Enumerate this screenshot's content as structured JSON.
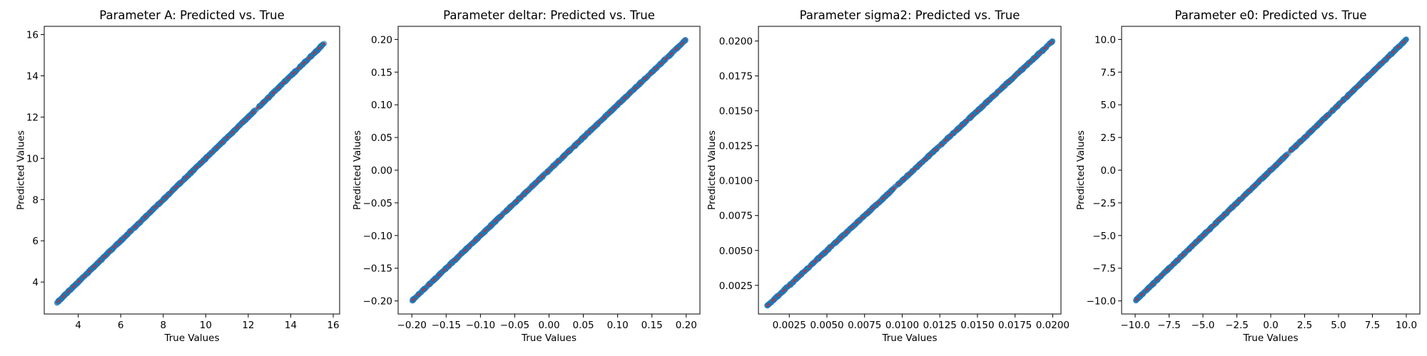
{
  "figure": {
    "background": "#ffffff"
  },
  "style": {
    "point_color": "#1f77b4",
    "point_alpha": 0.55,
    "line_color": "#d62728"
  },
  "chart_data": [
    {
      "type": "scatter",
      "title": "Parameter A: Predicted vs. True",
      "xlabel": "True Values",
      "ylabel": "Predicted Values",
      "xlim": [
        2.4,
        16.3
      ],
      "ylim": [
        2.45,
        16.4
      ],
      "xticks": [
        4,
        6,
        8,
        10,
        12,
        14,
        16
      ],
      "xtick_labels": [
        "4",
        "6",
        "8",
        "10",
        "12",
        "14",
        "16"
      ],
      "yticks": [
        4,
        6,
        8,
        10,
        12,
        14,
        16
      ],
      "ytick_labels": [
        "4",
        "6",
        "8",
        "10",
        "12",
        "14",
        "16"
      ],
      "x_range": [
        3.0,
        15.6
      ],
      "y_range": [
        3.0,
        15.7
      ],
      "reference_line": {
        "x": [
          3.0,
          15.6
        ],
        "y": [
          3.0,
          15.6
        ],
        "style": "dashed"
      }
    },
    {
      "type": "scatter",
      "title": "Parameter deltar: Predicted vs. True",
      "xlabel": "True Values",
      "ylabel": "Predicted Values",
      "xlim": [
        -0.22,
        0.22
      ],
      "ylim": [
        -0.22,
        0.22
      ],
      "xticks": [
        -0.2,
        -0.15,
        -0.1,
        -0.05,
        0.0,
        0.05,
        0.1,
        0.15,
        0.2
      ],
      "xtick_labels": [
        "−0.20",
        "−0.15",
        "−0.10",
        "−0.05",
        "0.00",
        "0.05",
        "0.10",
        "0.15",
        "0.20"
      ],
      "yticks": [
        -0.2,
        -0.15,
        -0.1,
        -0.05,
        0.0,
        0.05,
        0.1,
        0.15,
        0.2
      ],
      "ytick_labels": [
        "−0.20",
        "−0.15",
        "−0.10",
        "−0.05",
        "0.00",
        "0.05",
        "0.10",
        "0.15",
        "0.20"
      ],
      "x_range": [
        -0.2,
        0.2
      ],
      "y_range": [
        -0.2,
        0.2
      ],
      "reference_line": {
        "x": [
          -0.2,
          0.2
        ],
        "y": [
          -0.2,
          0.2
        ],
        "style": "dashed"
      }
    },
    {
      "type": "scatter",
      "title": "Parameter sigma2: Predicted vs. True",
      "xlabel": "True Values",
      "ylabel": "Predicted Values",
      "xlim": [
        0.00045,
        0.02055
      ],
      "ylim": [
        0.00045,
        0.02105
      ],
      "xticks": [
        0.0025,
        0.005,
        0.0075,
        0.01,
        0.0125,
        0.015,
        0.0175,
        0.02
      ],
      "xtick_labels": [
        "0.0025",
        "0.0050",
        "0.0075",
        "0.0100",
        "0.0125",
        "0.0150",
        "0.0175",
        "0.0200"
      ],
      "yticks": [
        0.0025,
        0.005,
        0.0075,
        0.01,
        0.0125,
        0.015,
        0.0175,
        0.02
      ],
      "ytick_labels": [
        "0.0025",
        "0.0050",
        "0.0075",
        "0.0100",
        "0.0125",
        "0.0150",
        "0.0175",
        "0.0200"
      ],
      "x_range": [
        0.001,
        0.02
      ],
      "y_range": [
        0.001,
        0.02
      ],
      "reference_line": {
        "x": [
          0.001,
          0.02
        ],
        "y": [
          0.001,
          0.02
        ],
        "style": "dashed"
      }
    },
    {
      "type": "scatter",
      "title": "Parameter e0: Predicted vs. True",
      "xlabel": "True Values",
      "ylabel": "Predicted Values",
      "xlim": [
        -11.0,
        11.0
      ],
      "ylim": [
        -11.0,
        11.0
      ],
      "xticks": [
        -10,
        -7.5,
        -5,
        -2.5,
        0,
        2.5,
        5,
        7.5,
        10
      ],
      "xtick_labels": [
        "−10.0",
        "−7.5",
        "−5.0",
        "−2.5",
        "0.0",
        "2.5",
        "5.0",
        "7.5",
        "10.0"
      ],
      "yticks": [
        -10,
        -7.5,
        -5,
        -2.5,
        0,
        2.5,
        5,
        7.5,
        10
      ],
      "ytick_labels": [
        "−10.0",
        "−7.5",
        "−5.0",
        "−2.5",
        "0.0",
        "2.5",
        "5.0",
        "7.5",
        "10.0"
      ],
      "x_range": [
        -10.0,
        10.0
      ],
      "y_range": [
        -10.0,
        10.0
      ],
      "reference_line": {
        "x": [
          -10.0,
          10.0
        ],
        "y": [
          -10.0,
          10.0
        ],
        "style": "dashed"
      }
    }
  ]
}
